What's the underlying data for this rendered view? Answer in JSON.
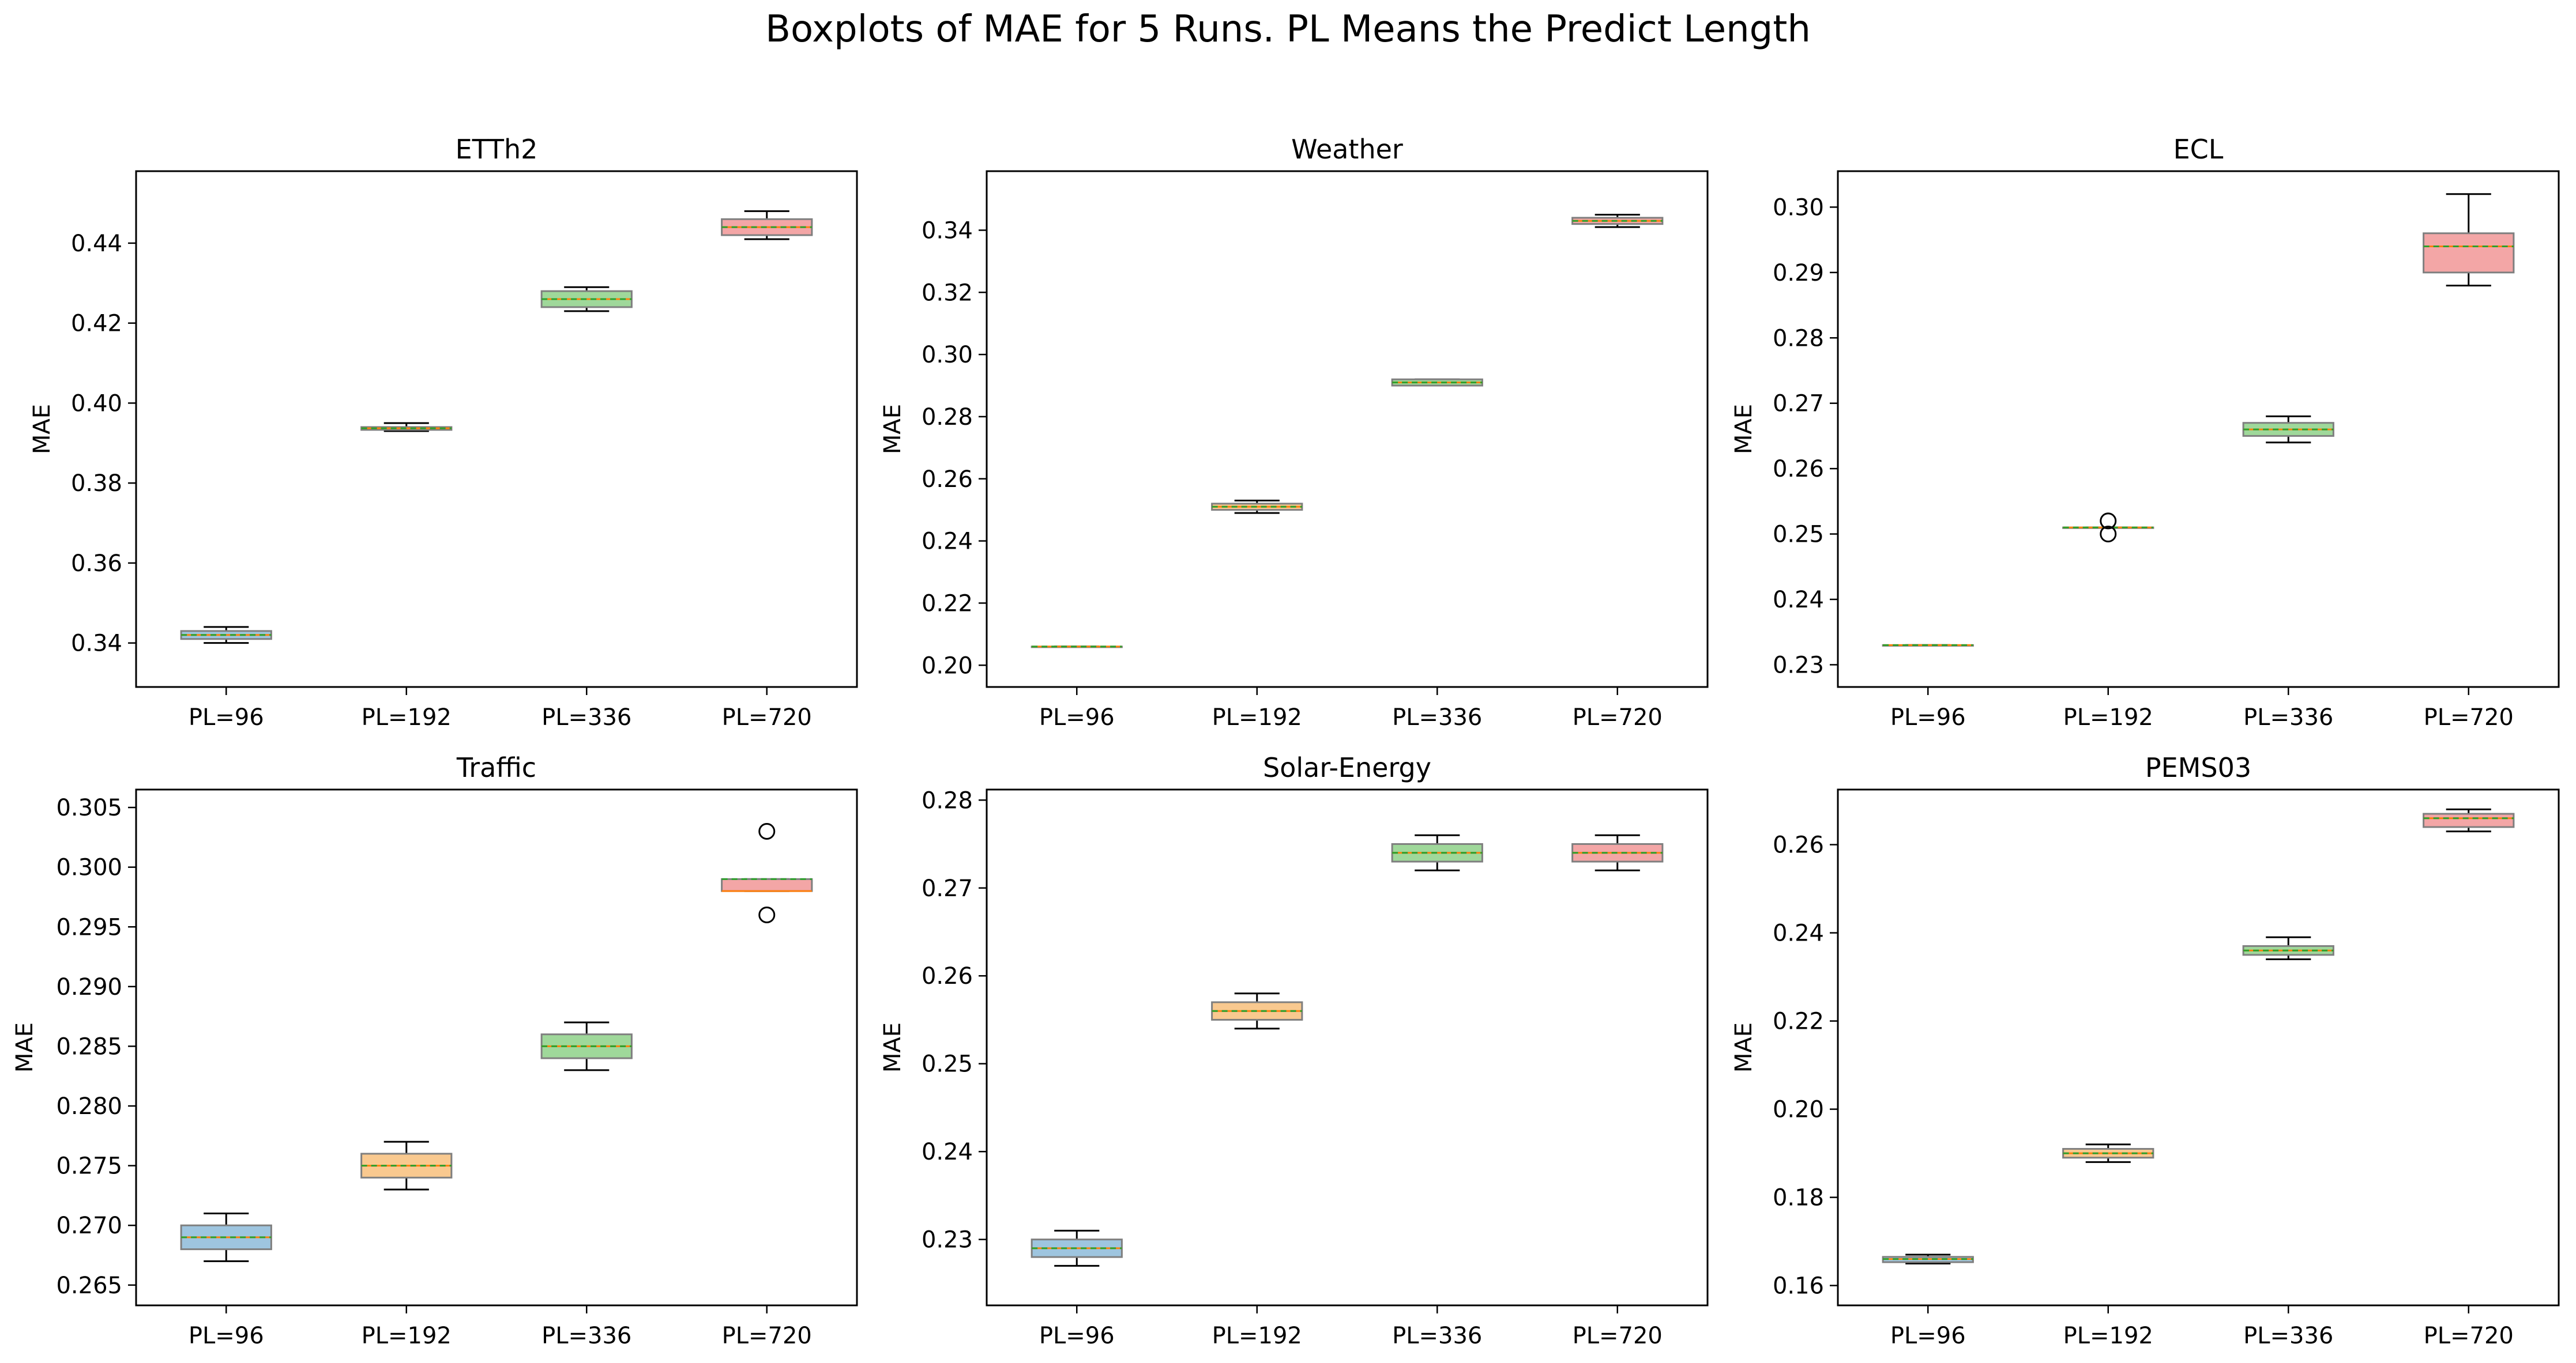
{
  "figure": {
    "title": "Boxplots of MAE for 5 Runs. PL Means the Predict Length"
  },
  "colors": {
    "box_fills": [
      "#9ec5df",
      "#f9c98f",
      "#9fd89a",
      "#f3a6a6"
    ],
    "box_edge": "#7f7f7f",
    "median": "#ff7f0e",
    "mean": "#2ca02c",
    "whisker": "#000000"
  },
  "chart_data": [
    {
      "type": "box",
      "title": "ETTh2",
      "ylabel": "MAE",
      "categories": [
        "PL=96",
        "PL=192",
        "PL=336",
        "PL=720"
      ],
      "ylim": [
        0.329,
        0.458
      ],
      "yticks": [
        0.34,
        0.36,
        0.38,
        0.4,
        0.42,
        0.44
      ],
      "tick_decimals": 2,
      "boxes": [
        {
          "min": 0.34,
          "q1": 0.341,
          "median": 0.342,
          "q3": 0.343,
          "max": 0.344,
          "mean": 0.342,
          "outliers": []
        },
        {
          "min": 0.393,
          "q1": 0.3933,
          "median": 0.3937,
          "q3": 0.394,
          "max": 0.395,
          "mean": 0.3937,
          "outliers": []
        },
        {
          "min": 0.423,
          "q1": 0.424,
          "median": 0.426,
          "q3": 0.428,
          "max": 0.429,
          "mean": 0.426,
          "outliers": []
        },
        {
          "min": 0.441,
          "q1": 0.442,
          "median": 0.444,
          "q3": 0.446,
          "max": 0.448,
          "mean": 0.444,
          "outliers": []
        }
      ]
    },
    {
      "type": "box",
      "title": "Weather",
      "ylabel": "MAE",
      "categories": [
        "PL=96",
        "PL=192",
        "PL=336",
        "PL=720"
      ],
      "ylim": [
        0.193,
        0.359
      ],
      "yticks": [
        0.2,
        0.22,
        0.24,
        0.26,
        0.28,
        0.3,
        0.32,
        0.34
      ],
      "tick_decimals": 2,
      "boxes": [
        {
          "min": 0.206,
          "q1": 0.206,
          "median": 0.206,
          "q3": 0.206,
          "max": 0.206,
          "mean": 0.206,
          "outliers": []
        },
        {
          "min": 0.249,
          "q1": 0.25,
          "median": 0.251,
          "q3": 0.252,
          "max": 0.253,
          "mean": 0.251,
          "outliers": []
        },
        {
          "min": 0.29,
          "q1": 0.29,
          "median": 0.291,
          "q3": 0.292,
          "max": 0.292,
          "mean": 0.291,
          "outliers": []
        },
        {
          "min": 0.341,
          "q1": 0.342,
          "median": 0.343,
          "q3": 0.344,
          "max": 0.345,
          "mean": 0.343,
          "outliers": []
        }
      ]
    },
    {
      "type": "box",
      "title": "ECL",
      "ylabel": "MAE",
      "categories": [
        "PL=96",
        "PL=192",
        "PL=336",
        "PL=720"
      ],
      "ylim": [
        0.2266,
        0.3055
      ],
      "yticks": [
        0.23,
        0.24,
        0.25,
        0.26,
        0.27,
        0.28,
        0.29,
        0.3
      ],
      "tick_decimals": 2,
      "boxes": [
        {
          "min": 0.233,
          "q1": 0.233,
          "median": 0.233,
          "q3": 0.233,
          "max": 0.233,
          "mean": 0.233,
          "outliers": []
        },
        {
          "min": 0.251,
          "q1": 0.251,
          "median": 0.251,
          "q3": 0.251,
          "max": 0.251,
          "mean": 0.251,
          "outliers": [
            0.252,
            0.25
          ]
        },
        {
          "min": 0.264,
          "q1": 0.265,
          "median": 0.266,
          "q3": 0.267,
          "max": 0.268,
          "mean": 0.266,
          "outliers": []
        },
        {
          "min": 0.288,
          "q1": 0.29,
          "median": 0.294,
          "q3": 0.296,
          "max": 0.302,
          "mean": 0.294,
          "outliers": []
        }
      ]
    },
    {
      "type": "box",
      "title": "Traffic",
      "ylabel": "MAE",
      "categories": [
        "PL=96",
        "PL=192",
        "PL=336",
        "PL=720"
      ],
      "ylim": [
        0.2633,
        0.3065
      ],
      "yticks": [
        0.265,
        0.27,
        0.275,
        0.28,
        0.285,
        0.29,
        0.295,
        0.3,
        0.305
      ],
      "tick_decimals": 3,
      "boxes": [
        {
          "min": 0.267,
          "q1": 0.268,
          "median": 0.269,
          "q3": 0.27,
          "max": 0.271,
          "mean": 0.269,
          "outliers": []
        },
        {
          "min": 0.273,
          "q1": 0.274,
          "median": 0.275,
          "q3": 0.276,
          "max": 0.277,
          "mean": 0.275,
          "outliers": []
        },
        {
          "min": 0.283,
          "q1": 0.284,
          "median": 0.285,
          "q3": 0.286,
          "max": 0.287,
          "mean": 0.285,
          "outliers": []
        },
        {
          "min": 0.298,
          "q1": 0.298,
          "median": 0.298,
          "q3": 0.299,
          "max": 0.299,
          "mean": 0.299,
          "outliers": [
            0.303,
            0.296
          ]
        }
      ]
    },
    {
      "type": "box",
      "title": "Solar-Energy",
      "ylabel": "MAE",
      "categories": [
        "PL=96",
        "PL=192",
        "PL=336",
        "PL=720"
      ],
      "ylim": [
        0.2225,
        0.2812
      ],
      "yticks": [
        0.23,
        0.24,
        0.25,
        0.26,
        0.27,
        0.28
      ],
      "tick_decimals": 2,
      "boxes": [
        {
          "min": 0.227,
          "q1": 0.228,
          "median": 0.229,
          "q3": 0.23,
          "max": 0.231,
          "mean": 0.229,
          "outliers": []
        },
        {
          "min": 0.254,
          "q1": 0.255,
          "median": 0.256,
          "q3": 0.257,
          "max": 0.258,
          "mean": 0.256,
          "outliers": []
        },
        {
          "min": 0.272,
          "q1": 0.273,
          "median": 0.274,
          "q3": 0.275,
          "max": 0.276,
          "mean": 0.274,
          "outliers": []
        },
        {
          "min": 0.272,
          "q1": 0.273,
          "median": 0.274,
          "q3": 0.275,
          "max": 0.276,
          "mean": 0.274,
          "outliers": []
        }
      ]
    },
    {
      "type": "box",
      "title": "PEMS03",
      "ylabel": "MAE",
      "categories": [
        "PL=96",
        "PL=192",
        "PL=336",
        "PL=720"
      ],
      "ylim": [
        0.1555,
        0.2725
      ],
      "yticks": [
        0.16,
        0.18,
        0.2,
        0.22,
        0.24,
        0.26
      ],
      "tick_decimals": 2,
      "boxes": [
        {
          "min": 0.165,
          "q1": 0.1653,
          "median": 0.166,
          "q3": 0.1665,
          "max": 0.167,
          "mean": 0.166,
          "outliers": []
        },
        {
          "min": 0.188,
          "q1": 0.189,
          "median": 0.19,
          "q3": 0.191,
          "max": 0.192,
          "mean": 0.19,
          "outliers": []
        },
        {
          "min": 0.234,
          "q1": 0.235,
          "median": 0.236,
          "q3": 0.237,
          "max": 0.239,
          "mean": 0.236,
          "outliers": []
        },
        {
          "min": 0.263,
          "q1": 0.264,
          "median": 0.266,
          "q3": 0.267,
          "max": 0.268,
          "mean": 0.266,
          "outliers": []
        }
      ]
    }
  ]
}
